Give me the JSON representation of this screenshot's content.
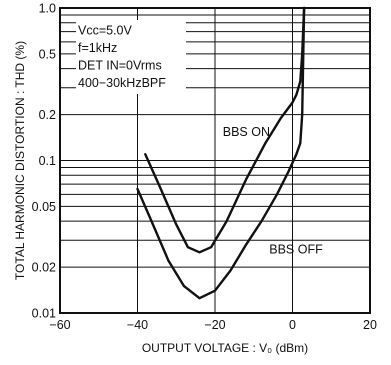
{
  "chart_data": {
    "type": "line",
    "xlabel": "OUTPUT VOLTAGE : V₀ (dBm)",
    "ylabel": "TOTAL HARMONIC DISTORTION : THD (%)",
    "xlim": [
      -60,
      20
    ],
    "ylim": [
      0.01,
      1.0
    ],
    "yscale": "log",
    "x_ticks": [
      -60,
      -40,
      -20,
      0,
      20
    ],
    "x_tick_labels": [
      "−60",
      "−40",
      "−20",
      "0",
      "20"
    ],
    "y_ticks": [
      0.01,
      0.02,
      0.05,
      0.1,
      0.2,
      0.5,
      1.0
    ],
    "y_tick_labels": [
      "0.01",
      "0.02",
      "0.05",
      "0.1",
      "0.2",
      "0.5",
      "1.0"
    ],
    "grid": true,
    "conditions": [
      "Vcc=5.0V",
      "f=1kHz",
      "DET IN=0Vrms",
      "400−30kHzBPF"
    ],
    "series": [
      {
        "name": "BBS ON",
        "x": [
          -38,
          -34,
          -30,
          -27,
          -24,
          -21,
          -17,
          -12,
          -7,
          -3,
          0,
          1,
          2,
          2.5,
          3
        ],
        "y": [
          0.11,
          0.065,
          0.038,
          0.027,
          0.025,
          0.027,
          0.04,
          0.075,
          0.13,
          0.19,
          0.24,
          0.27,
          0.33,
          0.5,
          1.0
        ]
      },
      {
        "name": "BBS OFF",
        "x": [
          -40,
          -36,
          -32,
          -28,
          -24,
          -20,
          -16,
          -12,
          -8,
          -4,
          -1,
          1,
          2,
          2.5,
          3
        ],
        "y": [
          0.065,
          0.038,
          0.022,
          0.015,
          0.0125,
          0.014,
          0.019,
          0.028,
          0.04,
          0.06,
          0.085,
          0.11,
          0.13,
          0.2,
          1.0
        ]
      }
    ]
  }
}
